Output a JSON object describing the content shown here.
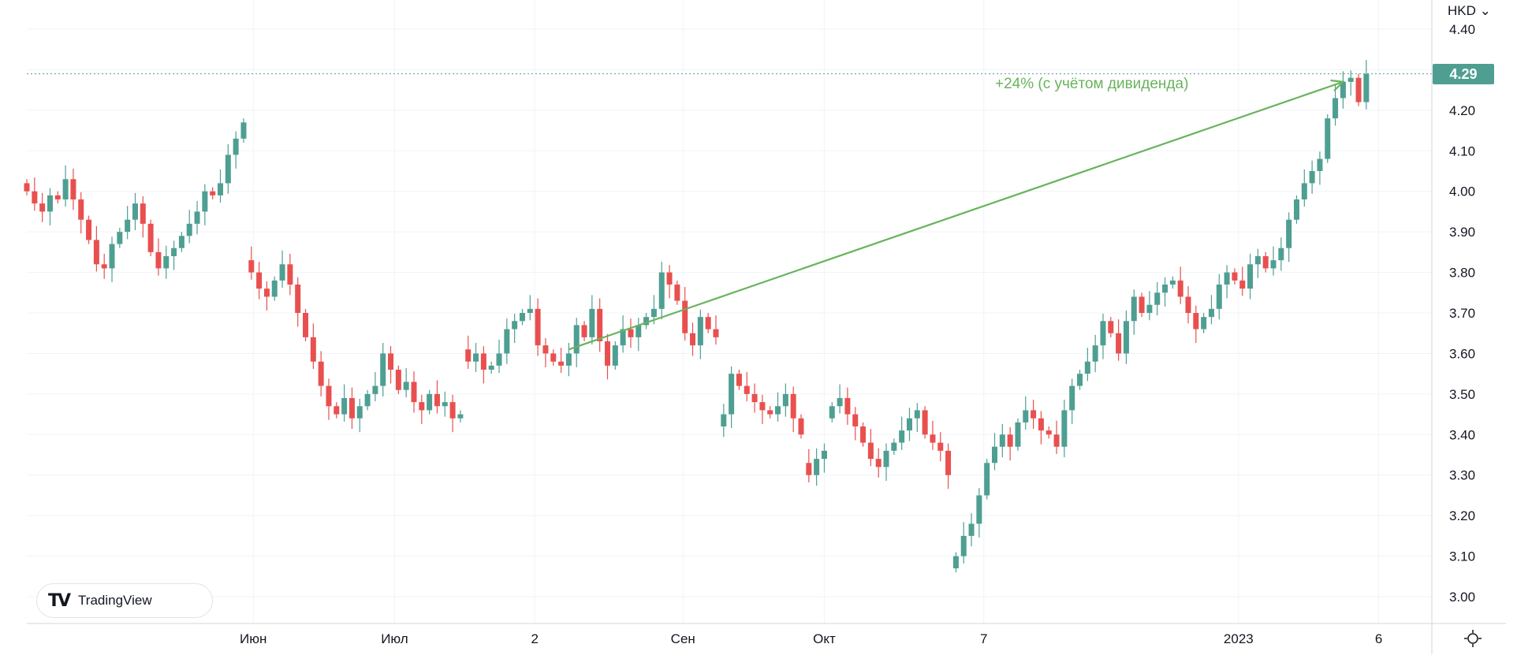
{
  "header": {
    "currency": "HKD",
    "currency_chevron": "⌄"
  },
  "current_price_label": "4.29",
  "logo": {
    "mark": "TV",
    "text": "TradingView"
  },
  "colors": {
    "up": "#4e9f92",
    "down": "#e8504f",
    "annotation": "#68b35c",
    "grid": "#f0f3fa",
    "price_line": "#4e9f92"
  },
  "chart_data": {
    "type": "candlestick",
    "title": "",
    "ylabel": "HKD",
    "ylim": [
      2.93,
      4.45
    ],
    "grid": true,
    "y_ticks": [
      "4.40",
      "4.30",
      "4.20",
      "4.10",
      "4.00",
      "3.90",
      "3.80",
      "3.70",
      "3.60",
      "3.50",
      "3.40",
      "3.30",
      "3.20",
      "3.10",
      "3.00"
    ],
    "x_ticks": [
      {
        "label": "Июн",
        "index": 29.25
      },
      {
        "label": "Июл",
        "index": 47.5
      },
      {
        "label": "2",
        "index": 65.6
      },
      {
        "label": "Сен",
        "index": 84.75
      },
      {
        "label": "Окт",
        "index": 103
      },
      {
        "label": "7",
        "index": 123.6
      },
      {
        "label": "2023",
        "index": 156.5
      },
      {
        "label": "6",
        "index": 174.6
      }
    ],
    "closes": [
      4.0,
      3.97,
      3.95,
      3.99,
      3.98,
      4.03,
      3.98,
      3.93,
      3.88,
      3.82,
      3.81,
      3.87,
      3.9,
      3.93,
      3.97,
      3.92,
      3.85,
      3.81,
      3.84,
      3.86,
      3.89,
      3.92,
      3.95,
      4.0,
      3.99,
      4.02,
      4.09,
      4.13,
      4.17,
      3.8,
      3.76,
      3.74,
      3.78,
      3.82,
      3.77,
      3.7,
      3.64,
      3.58,
      3.52,
      3.47,
      3.45,
      3.49,
      3.44,
      3.47,
      3.5,
      3.52,
      3.6,
      3.56,
      3.51,
      3.53,
      3.48,
      3.46,
      3.5,
      3.47,
      3.48,
      3.44,
      3.45,
      3.58,
      3.6,
      3.56,
      3.57,
      3.6,
      3.66,
      3.68,
      3.7,
      3.71,
      3.62,
      3.6,
      3.58,
      3.57,
      3.6,
      3.67,
      3.64,
      3.71,
      3.63,
      3.57,
      3.62,
      3.66,
      3.64,
      3.67,
      3.69,
      3.71,
      3.8,
      3.77,
      3.73,
      3.65,
      3.62,
      3.69,
      3.66,
      3.64,
      3.45,
      3.55,
      3.52,
      3.5,
      3.48,
      3.46,
      3.45,
      3.47,
      3.5,
      3.44,
      3.4,
      3.3,
      3.34,
      3.36,
      3.47,
      3.49,
      3.45,
      3.42,
      3.38,
      3.34,
      3.32,
      3.36,
      3.38,
      3.41,
      3.44,
      3.46,
      3.4,
      3.38,
      3.36,
      3.3,
      3.1,
      3.15,
      3.18,
      3.25,
      3.33,
      3.37,
      3.4,
      3.37,
      3.43,
      3.46,
      3.44,
      3.41,
      3.4,
      3.37,
      3.46,
      3.52,
      3.55,
      3.58,
      3.62,
      3.68,
      3.65,
      3.6,
      3.68,
      3.74,
      3.7,
      3.72,
      3.75,
      3.77,
      3.78,
      3.74,
      3.7,
      3.66,
      3.69,
      3.71,
      3.77,
      3.8,
      3.78,
      3.76,
      3.82,
      3.84,
      3.81,
      3.83,
      3.86,
      3.93,
      3.98,
      4.02,
      4.05,
      4.08,
      4.18,
      4.23,
      4.27,
      4.28,
      4.22,
      4.29
    ],
    "current_price": 4.29,
    "annotation": {
      "text": "+24% (с учётом дивиденда)",
      "start": {
        "index": 70,
        "price": 3.61
      },
      "end": {
        "index": 170,
        "price": 4.27
      }
    }
  }
}
